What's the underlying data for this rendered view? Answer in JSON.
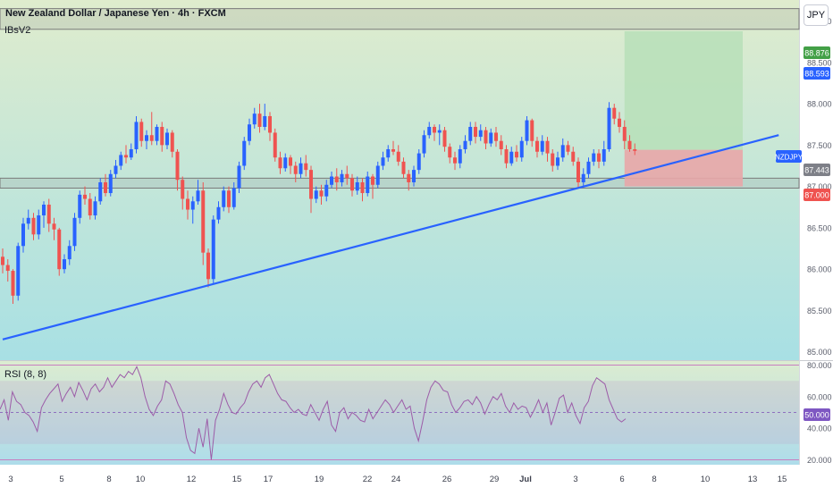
{
  "header": {
    "title": "New Zealand Dollar / Japanese Yen · 4h · FXCM",
    "indicator": "IBsV2",
    "currency_button": "JPY"
  },
  "colors": {
    "up_candle": "#2962ff",
    "down_candle": "#ef5350",
    "trendline": "#2962ff",
    "zone_border": "#7a7a7a",
    "target_zone": "#b7dfb9",
    "stop_zone": "#e8a6a8",
    "rsi_line": "#9c5ca8",
    "rsi_band": "#c87fc0",
    "bg_top": "#dfeccd",
    "bg_bottom": "#a8e0e4"
  },
  "price_labels": {
    "target": "88.876",
    "entry": "88.593",
    "ticker": "NZDJPY",
    "current": "87.443",
    "stop": "87.000"
  },
  "rsi": {
    "label": "RSI (8, 8)",
    "mid_label": "50.000"
  },
  "chart_data": [
    {
      "type": "candlestick",
      "title": "New Zealand Dollar / Japanese Yen · 4h · FXCM",
      "ylim": [
        84.9,
        89.2
      ],
      "y_ticks": [
        "89.000",
        "88.500",
        "88.000",
        "87.500",
        "87.000",
        "86.500",
        "86.000",
        "85.500",
        "85.000"
      ],
      "x_ticks": [
        "3",
        "5",
        "8",
        "10",
        "12",
        "15",
        "17",
        "19",
        "22",
        "24",
        "26",
        "29",
        "Jul",
        "3",
        "6",
        "8",
        "10",
        "13",
        "15"
      ],
      "horizontal_zones": [
        [
          88.9,
          89.15
        ],
        [
          86.98,
          87.1
        ]
      ],
      "trendline": {
        "from": [
          0,
          85.15
        ],
        "to": [
          151,
          87.62
        ]
      },
      "target_zone": {
        "x": [
          121,
          144
        ],
        "y": [
          87.443,
          88.876
        ]
      },
      "stop_zone": {
        "x": [
          121,
          144
        ],
        "y": [
          87.0,
          87.443
        ]
      },
      "candles": [
        [
          86.15,
          86.05,
          86.25,
          85.95
        ],
        [
          86.05,
          85.98,
          86.12,
          85.85
        ],
        [
          85.98,
          85.68,
          86.0,
          85.58
        ],
        [
          85.68,
          86.28,
          86.32,
          85.62
        ],
        [
          86.28,
          86.55,
          86.62,
          86.2
        ],
        [
          86.55,
          86.62,
          86.72,
          86.48
        ],
        [
          86.62,
          86.42,
          86.68,
          86.35
        ],
        [
          86.42,
          86.65,
          86.72,
          86.36
        ],
        [
          86.65,
          86.78,
          86.82,
          86.5
        ],
        [
          86.78,
          86.55,
          86.85,
          86.45
        ],
        [
          86.55,
          86.48,
          86.62,
          86.35
        ],
        [
          86.48,
          86.0,
          86.5,
          85.92
        ],
        [
          86.0,
          86.12,
          86.18,
          85.95
        ],
        [
          86.12,
          86.28,
          86.35,
          86.05
        ],
        [
          86.28,
          86.62,
          86.68,
          86.22
        ],
        [
          86.62,
          86.9,
          86.95,
          86.55
        ],
        [
          86.9,
          86.85,
          87.0,
          86.78
        ],
        [
          86.85,
          86.65,
          86.92,
          86.6
        ],
        [
          86.65,
          86.82,
          86.88,
          86.6
        ],
        [
          86.82,
          87.05,
          87.1,
          86.78
        ],
        [
          87.05,
          86.92,
          87.15,
          86.88
        ],
        [
          86.92,
          87.15,
          87.2,
          86.88
        ],
        [
          87.15,
          87.25,
          87.32,
          87.1
        ],
        [
          87.25,
          87.38,
          87.42,
          87.2
        ],
        [
          87.38,
          87.35,
          87.5,
          87.28
        ],
        [
          87.35,
          87.45,
          87.52,
          87.32
        ],
        [
          87.45,
          87.78,
          87.85,
          87.4
        ],
        [
          87.78,
          87.55,
          87.82,
          87.48
        ],
        [
          87.55,
          87.62,
          87.68,
          87.45
        ],
        [
          87.62,
          87.55,
          87.9,
          87.5
        ],
        [
          87.55,
          87.72,
          87.75,
          87.5
        ],
        [
          87.72,
          87.5,
          87.78,
          87.42
        ],
        [
          87.5,
          87.65,
          87.7,
          87.45
        ],
        [
          87.65,
          87.42,
          87.68,
          87.35
        ],
        [
          87.42,
          87.08,
          87.45,
          86.95
        ],
        [
          87.08,
          86.85,
          87.12,
          86.72
        ],
        [
          86.85,
          86.72,
          86.95,
          86.6
        ],
        [
          86.72,
          86.82,
          86.88,
          86.55
        ],
        [
          86.82,
          86.95,
          87.08,
          86.78
        ],
        [
          86.95,
          86.2,
          87.05,
          86.05
        ],
        [
          86.2,
          85.88,
          86.25,
          85.78
        ],
        [
          85.88,
          86.6,
          86.65,
          85.82
        ],
        [
          86.6,
          86.75,
          86.82,
          86.55
        ],
        [
          86.75,
          86.95,
          87.0,
          86.7
        ],
        [
          86.95,
          86.75,
          87.0,
          86.68
        ],
        [
          86.75,
          86.98,
          87.05,
          86.72
        ],
        [
          86.98,
          87.25,
          87.3,
          86.92
        ],
        [
          87.25,
          87.55,
          87.6,
          87.2
        ],
        [
          87.55,
          87.75,
          87.82,
          87.5
        ],
        [
          87.75,
          87.88,
          87.95,
          87.7
        ],
        [
          87.88,
          87.72,
          88.0,
          87.65
        ],
        [
          87.72,
          87.85,
          88.0,
          87.68
        ],
        [
          87.85,
          87.65,
          87.9,
          87.55
        ],
        [
          87.65,
          87.35,
          87.7,
          87.3
        ],
        [
          87.35,
          87.22,
          87.42,
          87.15
        ],
        [
          87.22,
          87.35,
          87.4,
          87.18
        ],
        [
          87.35,
          87.25,
          87.38,
          87.15
        ],
        [
          87.25,
          87.15,
          87.3,
          87.05
        ],
        [
          87.15,
          87.28,
          87.35,
          87.1
        ],
        [
          87.28,
          87.2,
          87.38,
          87.12
        ],
        [
          87.2,
          86.85,
          87.25,
          86.68
        ],
        [
          86.85,
          86.95,
          87.0,
          86.8
        ],
        [
          86.95,
          86.88,
          87.02,
          86.78
        ],
        [
          86.88,
          87.02,
          87.08,
          86.82
        ],
        [
          87.02,
          87.12,
          87.18,
          86.98
        ],
        [
          87.12,
          87.05,
          87.22,
          86.95
        ],
        [
          87.05,
          87.15,
          87.2,
          87.0
        ],
        [
          87.15,
          87.1,
          87.25,
          87.02
        ],
        [
          87.1,
          86.95,
          87.15,
          86.88
        ],
        [
          86.95,
          87.05,
          87.12,
          86.9
        ],
        [
          87.05,
          86.92,
          87.1,
          86.82
        ],
        [
          86.92,
          87.12,
          87.18,
          86.88
        ],
        [
          87.12,
          87.02,
          87.15,
          86.85
        ],
        [
          87.02,
          87.25,
          87.3,
          86.98
        ],
        [
          87.25,
          87.35,
          87.42,
          87.2
        ],
        [
          87.35,
          87.45,
          87.5,
          87.3
        ],
        [
          87.45,
          87.42,
          87.55,
          87.38
        ],
        [
          87.42,
          87.3,
          87.5,
          87.25
        ],
        [
          87.3,
          87.15,
          87.35,
          87.1
        ],
        [
          87.15,
          87.05,
          87.2,
          86.95
        ],
        [
          87.05,
          87.2,
          87.25,
          87.0
        ],
        [
          87.2,
          87.4,
          87.45,
          87.15
        ],
        [
          87.4,
          87.62,
          87.68,
          87.35
        ],
        [
          87.62,
          87.72,
          87.78,
          87.58
        ],
        [
          87.72,
          87.65,
          87.75,
          87.55
        ],
        [
          87.65,
          87.68,
          87.75,
          87.5
        ],
        [
          87.68,
          87.48,
          87.72,
          87.42
        ],
        [
          87.48,
          87.35,
          87.52,
          87.28
        ],
        [
          87.35,
          87.28,
          87.42,
          87.2
        ],
        [
          87.28,
          87.45,
          87.5,
          87.22
        ],
        [
          87.45,
          87.55,
          87.62,
          87.4
        ],
        [
          87.55,
          87.72,
          87.78,
          87.5
        ],
        [
          87.72,
          87.6,
          87.78,
          87.52
        ],
        [
          87.6,
          87.68,
          87.75,
          87.55
        ],
        [
          87.68,
          87.52,
          87.72,
          87.45
        ],
        [
          87.52,
          87.65,
          87.7,
          87.48
        ],
        [
          87.65,
          87.55,
          87.72,
          87.48
        ],
        [
          87.55,
          87.45,
          87.62,
          87.38
        ],
        [
          87.45,
          87.28,
          87.5,
          87.22
        ],
        [
          87.28,
          87.42,
          87.48,
          87.25
        ],
        [
          87.42,
          87.35,
          87.5,
          87.3
        ],
        [
          87.35,
          87.55,
          87.6,
          87.3
        ],
        [
          87.55,
          87.8,
          87.85,
          87.5
        ],
        [
          87.8,
          87.55,
          87.82,
          87.48
        ],
        [
          87.55,
          87.42,
          87.6,
          87.35
        ],
        [
          87.42,
          87.55,
          87.62,
          87.38
        ],
        [
          87.55,
          87.4,
          87.6,
          87.3
        ],
        [
          87.4,
          87.25,
          87.45,
          87.18
        ],
        [
          87.25,
          87.35,
          87.42,
          87.2
        ],
        [
          87.35,
          87.5,
          87.58,
          87.3
        ],
        [
          87.5,
          87.42,
          87.55,
          87.38
        ],
        [
          87.42,
          87.3,
          87.48,
          87.25
        ],
        [
          87.3,
          87.05,
          87.35,
          86.98
        ],
        [
          87.05,
          87.15,
          87.22,
          87.0
        ],
        [
          87.15,
          87.3,
          87.35,
          87.1
        ],
        [
          87.3,
          87.4,
          87.45,
          87.25
        ],
        [
          87.4,
          87.3,
          87.45,
          87.22
        ],
        [
          87.3,
          87.45,
          87.55,
          87.25
        ],
        [
          87.45,
          87.95,
          88.02,
          87.42
        ],
        [
          87.95,
          87.82,
          88.0,
          87.75
        ],
        [
          87.82,
          87.72,
          87.9,
          87.65
        ],
        [
          87.72,
          87.55,
          87.8,
          87.45
        ],
        [
          87.55,
          87.45,
          87.62,
          87.42
        ],
        [
          87.45,
          87.43,
          87.52,
          87.38
        ]
      ]
    },
    {
      "type": "line",
      "title": "RSI (8, 8)",
      "ylim": [
        18,
        82
      ],
      "y_ticks": [
        "80.000",
        "60.000",
        "40.000",
        "20.000"
      ],
      "bands": [
        30,
        70
      ],
      "midline": 50,
      "values": [
        52,
        58,
        45,
        63,
        57,
        55,
        50,
        48,
        44,
        38,
        53,
        58,
        62,
        65,
        68,
        57,
        62,
        66,
        60,
        69,
        64,
        58,
        65,
        68,
        63,
        66,
        72,
        66,
        70,
        74,
        72,
        76,
        74,
        79,
        72,
        60,
        52,
        48,
        54,
        58,
        70,
        68,
        62,
        55,
        50,
        34,
        26,
        24,
        40,
        28,
        46,
        20,
        45,
        52,
        62,
        55,
        50,
        49,
        53,
        56,
        63,
        68,
        70,
        66,
        72,
        74,
        68,
        62,
        58,
        57,
        53,
        50,
        52,
        49,
        48,
        55,
        50,
        45,
        52,
        57,
        42,
        38,
        50,
        53,
        46,
        50,
        48,
        45,
        44,
        52,
        46,
        50,
        54,
        58,
        55,
        50,
        54,
        58,
        52,
        54,
        40,
        32,
        44,
        58,
        66,
        70,
        68,
        64,
        63,
        55,
        50,
        53,
        57,
        58,
        55,
        60,
        56,
        49,
        55,
        60,
        58,
        62,
        54,
        50,
        56,
        52,
        54,
        53,
        47,
        52,
        58,
        50,
        56,
        42,
        50,
        59,
        61,
        50,
        56,
        48,
        43,
        53,
        57,
        67,
        72,
        70,
        68,
        58,
        52,
        46,
        44,
        46
      ]
    }
  ]
}
